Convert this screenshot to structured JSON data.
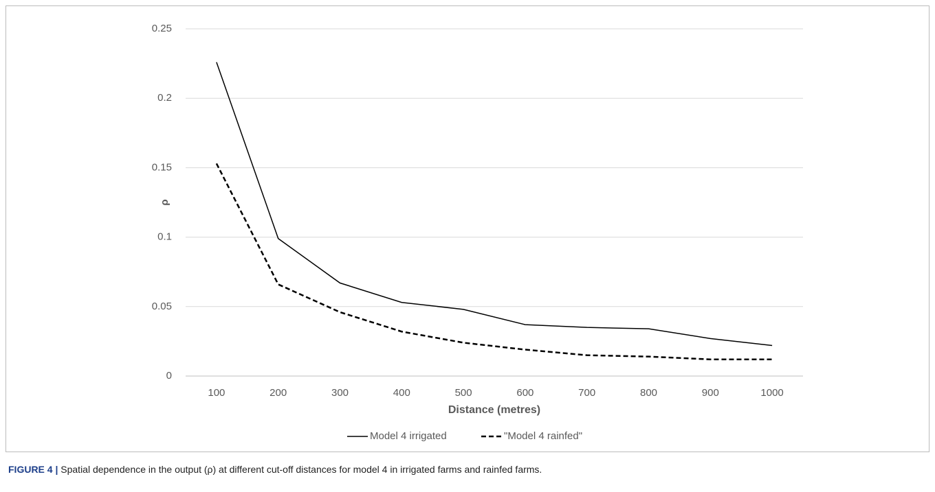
{
  "chart_data": {
    "type": "line",
    "y_label": "ρ",
    "x_label": "Distance (metres)",
    "categories": [
      "100",
      "200",
      "300",
      "400",
      "500",
      "600",
      "700",
      "800",
      "900",
      "1000"
    ],
    "series": [
      {
        "name": "Model 4 irrigated",
        "color": "#000000",
        "dashed": false,
        "values": [
          0.226,
          0.099,
          0.067,
          0.053,
          0.048,
          0.037,
          0.035,
          0.034,
          0.027,
          0.022
        ]
      },
      {
        "name": "\"Model 4 rainfed\"",
        "color": "#000000",
        "dashed": true,
        "values": [
          0.153,
          0.066,
          0.046,
          0.032,
          0.024,
          0.019,
          0.015,
          0.014,
          0.012,
          0.012
        ]
      }
    ],
    "ylim": [
      0,
      0.25
    ],
    "yticks": [
      0,
      0.05,
      0.1,
      0.15,
      0.2,
      0.25
    ],
    "grid": true,
    "legend": "bottom"
  },
  "caption": {
    "label": "FIGURE 4 |",
    "text": "Spatial dependence in the output (ρ) at different cut-off distances for model 4 in irrigated farms and rainfed farms."
  }
}
